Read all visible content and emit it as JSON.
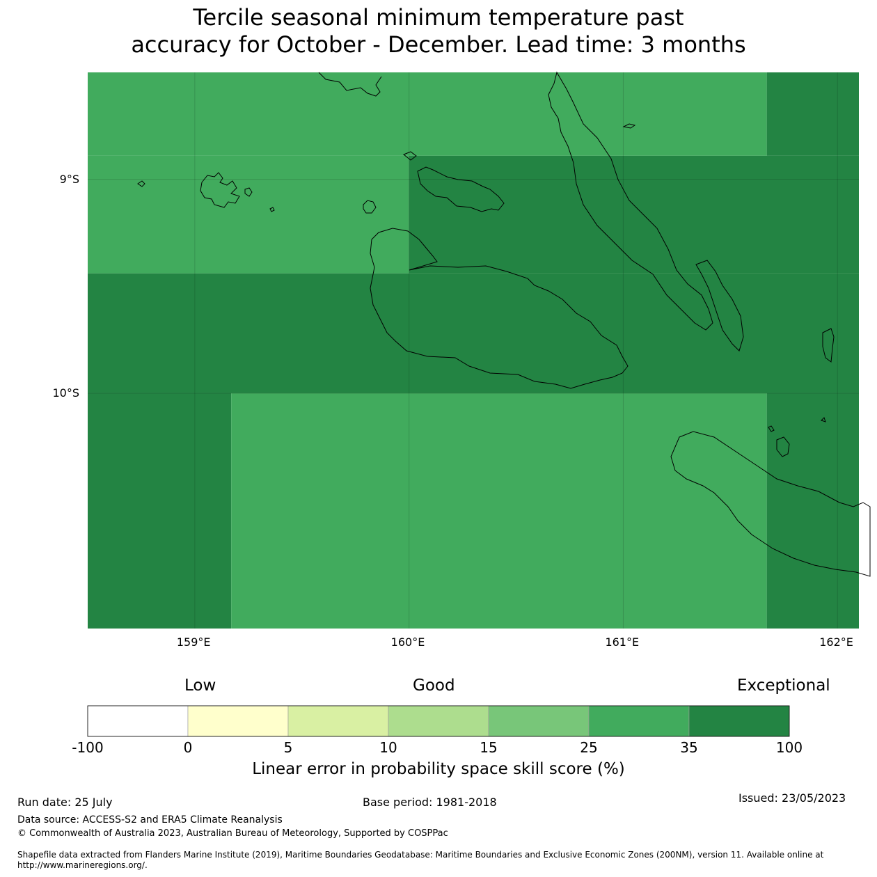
{
  "title_line1": "Tercile seasonal minimum temperature past",
  "title_line2": "accuracy for October - December. Lead time: 3 months",
  "map": {
    "lon_range": [
      158.5,
      162.1
    ],
    "lat_range": [
      -11.1,
      -8.5
    ],
    "lat_labels": [
      {
        "lat": -9,
        "text": "9°S"
      },
      {
        "lat": -10,
        "text": "10°S"
      }
    ],
    "lon_labels": [
      {
        "lon": 159,
        "text": "159°E"
      },
      {
        "lon": 160,
        "text": "160°E"
      },
      {
        "lon": 161,
        "text": "161°E"
      },
      {
        "lon": 162,
        "text": "162°E"
      }
    ],
    "cells": [
      {
        "lon": [
          158.5,
          161.67
        ],
        "lat": [
          -8.5,
          -8.89
        ],
        "class": "25-35"
      },
      {
        "lon": [
          161.67,
          162.1
        ],
        "lat": [
          -8.5,
          -8.89
        ],
        "class": "35-100"
      },
      {
        "lon": [
          158.5,
          160.0
        ],
        "lat": [
          -8.89,
          -9.44
        ],
        "class": "25-35"
      },
      {
        "lon": [
          160.0,
          162.1
        ],
        "lat": [
          -8.89,
          -9.44
        ],
        "class": "35-100"
      },
      {
        "lon": [
          158.5,
          162.1
        ],
        "lat": [
          -9.44,
          -10.0
        ],
        "class": "35-100"
      },
      {
        "lon": [
          158.5,
          159.17
        ],
        "lat": [
          -10.0,
          -11.1
        ],
        "class": "35-100"
      },
      {
        "lon": [
          159.17,
          161.67
        ],
        "lat": [
          -10.0,
          -11.1
        ],
        "class": "25-35"
      },
      {
        "lon": [
          161.67,
          162.1
        ],
        "lat": [
          -10.0,
          -11.1
        ],
        "class": "35-100"
      }
    ]
  },
  "colorbar": {
    "heading_low": "Low",
    "heading_good": "Good",
    "heading_exceptional": "Exceptional",
    "ticks": [
      "-100",
      "0",
      "5",
      "10",
      "15",
      "25",
      "35",
      "100"
    ],
    "colors": [
      "#ffffff",
      "#ffffcc",
      "#d9f0a3",
      "#addd8e",
      "#78c679",
      "#41ab5d",
      "#238443"
    ],
    "label": "Linear error in probability space skill score (%)"
  },
  "footer": {
    "run_date": "Run date: 25 July",
    "base_period": "Base period: 1981-2018",
    "issued": "Issued: 23/05/2023",
    "data_source": "Data source: ACCESS-S2 and ERA5 Climate Reanalysis",
    "copyright": "© Commonwealth of Australia 2023, Australian Bureau of Meteorology, Supported by COSPPac",
    "shapefile_line1": "Shapefile data extracted from Flanders Marine Institute (2019), Maritime Boundaries Geodatabase: Maritime Boundaries and Exclusive Economic Zones (200NM), version 11. Available online at",
    "shapefile_line2": "http://www.marineregions.org/."
  }
}
